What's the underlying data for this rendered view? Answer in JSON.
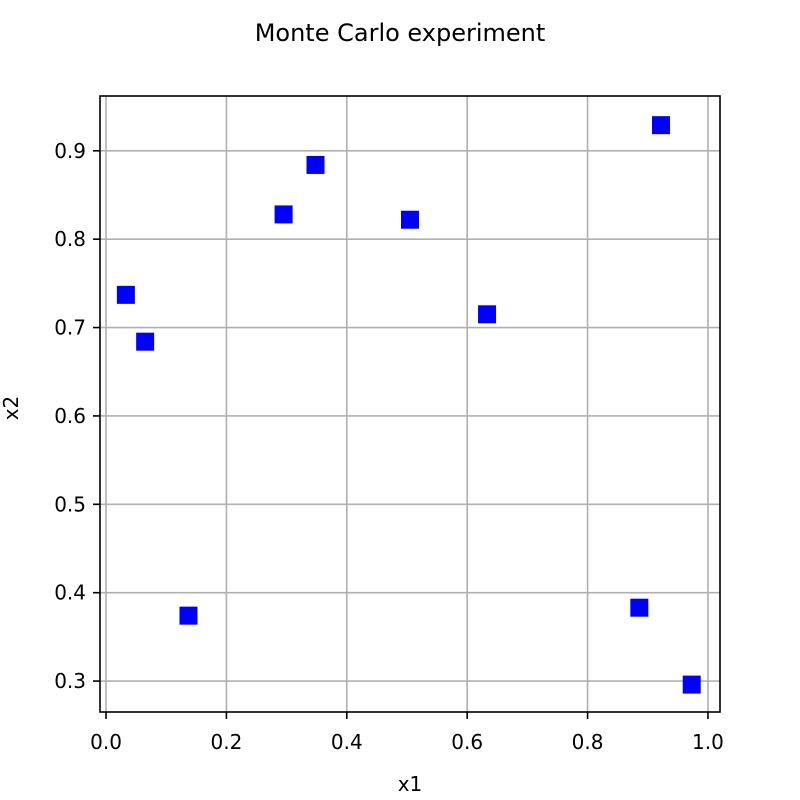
{
  "chart_data": {
    "type": "scatter",
    "title": "Monte Carlo experiment",
    "xlabel": "x1",
    "ylabel": "x2",
    "xlim": [
      -0.01,
      1.02
    ],
    "ylim": [
      0.265,
      0.962
    ],
    "xticks": [
      0.0,
      0.2,
      0.4,
      0.6,
      0.8,
      1.0
    ],
    "xtick_labels": [
      "0.0",
      "0.2",
      "0.4",
      "0.6",
      "0.8",
      "1.0"
    ],
    "yticks": [
      0.3,
      0.4,
      0.5,
      0.6,
      0.7,
      0.8,
      0.9
    ],
    "ytick_labels": [
      "0.3",
      "0.4",
      "0.5",
      "0.6",
      "0.7",
      "0.8",
      "0.9"
    ],
    "grid": true,
    "marker": "square",
    "color": "#0000ff",
    "series": [
      {
        "points": [
          {
            "x": 0.033,
            "y": 0.737
          },
          {
            "x": 0.065,
            "y": 0.684
          },
          {
            "x": 0.137,
            "y": 0.374
          },
          {
            "x": 0.295,
            "y": 0.828
          },
          {
            "x": 0.348,
            "y": 0.884
          },
          {
            "x": 0.505,
            "y": 0.822
          },
          {
            "x": 0.633,
            "y": 0.715
          },
          {
            "x": 0.886,
            "y": 0.383
          },
          {
            "x": 0.922,
            "y": 0.929
          },
          {
            "x": 0.973,
            "y": 0.296
          }
        ]
      }
    ]
  }
}
